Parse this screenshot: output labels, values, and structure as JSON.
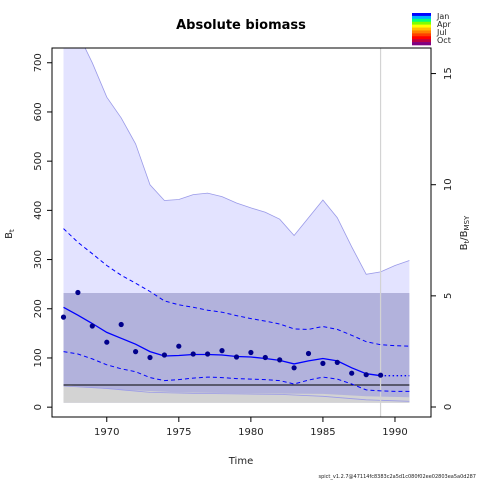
{
  "chart_data": {
    "type": "line",
    "title": "Absolute biomass",
    "xlabel": "Time",
    "ylabel_left": "B",
    "ylabel_left_sub": "t",
    "ylabel_right": "B",
    "ylabel_right_sub1": "t",
    "ylabel_right_mid": "/B",
    "ylabel_right_sub2": "MSY",
    "footer": "spict_v1.2.7@47114fc8383c2a5d1c080f02ee02803ea5a0d287",
    "xlim": [
      1966.2,
      1992.5
    ],
    "ylim": [
      -20,
      730
    ],
    "ylim_right": [
      -0.45,
      16.15
    ],
    "x_ticks": [
      1970,
      1975,
      1980,
      1985,
      1990
    ],
    "y_ticks": [
      0,
      100,
      200,
      300,
      400,
      500,
      600,
      700
    ],
    "y_ticks_right": [
      0,
      5,
      10,
      15
    ],
    "colors": {
      "ci_fill": "#e3e3ff",
      "ci_edge": "#9a9ae8",
      "band": "#8a8ac0",
      "line": "#0000ff",
      "points": "#00008b",
      "grey": "#d3d3d3",
      "vline": "#d3d3d3"
    },
    "legend": [
      "Jan",
      "Apr",
      "Jul",
      "Oct"
    ],
    "legend_colors": [
      "#0000ff",
      "#00b0ff",
      "#00ff7f",
      "#7fff00",
      "#ffff00",
      "#ffbf00",
      "#ff7f00",
      "#ff3f00",
      "#ff0000",
      "#bf0040",
      "#800080"
    ],
    "bmsy_band": [
      9,
      232
    ],
    "bmsy_line": 45,
    "grey_band_upper": {
      "x": [
        1967,
        1970,
        1975,
        1980,
        1985,
        1988,
        1991
      ],
      "y": [
        45,
        37,
        30,
        28,
        27,
        22,
        20
      ]
    },
    "vline_x": 1989,
    "observations": {
      "x": [
        1967,
        1968,
        1969,
        1970,
        1971,
        1972,
        1973,
        1974,
        1975,
        1976,
        1977,
        1978,
        1979,
        1980,
        1981,
        1982,
        1983,
        1984,
        1985,
        1986,
        1987,
        1988,
        1989
      ],
      "y": [
        183,
        233,
        165,
        132,
        168,
        113,
        101,
        106,
        124,
        108,
        108,
        115,
        102,
        111,
        101,
        96,
        80,
        109,
        89,
        91,
        69,
        66,
        65
      ]
    },
    "series": [
      {
        "name": "ci_upper",
        "x": [
          1967,
          1967.5,
          1968,
          1969,
          1970,
          1971,
          1972,
          1973,
          1974,
          1975,
          1976,
          1977,
          1978,
          1979,
          1980,
          1981,
          1982,
          1983,
          1984,
          1985,
          1986,
          1987,
          1988,
          1989,
          1990,
          1991
        ],
        "y": [
          730,
          770,
          760,
          700,
          630,
          588,
          535,
          452,
          420,
          422,
          432,
          435,
          428,
          415,
          405,
          396,
          382,
          349,
          385,
          421,
          385,
          326,
          270,
          275,
          288,
          298
        ]
      },
      {
        "name": "ci_lower",
        "x": [
          1967,
          1970,
          1973,
          1976,
          1979,
          1982,
          1985,
          1988,
          1991
        ],
        "y": [
          43,
          38,
          30,
          28,
          27,
          26,
          22,
          15,
          12
        ]
      },
      {
        "name": "upper_dashed",
        "x": [
          1967,
          1968,
          1969,
          1970,
          1971,
          1972,
          1973,
          1974,
          1975,
          1976,
          1977,
          1978,
          1979,
          1980,
          1981,
          1982,
          1983,
          1984,
          1985,
          1986,
          1987,
          1988,
          1989,
          1990,
          1991
        ],
        "y": [
          363,
          335,
          312,
          288,
          268,
          252,
          235,
          216,
          208,
          203,
          197,
          193,
          186,
          180,
          175,
          169,
          159,
          158,
          164,
          158,
          146,
          133,
          127,
          125,
          124
        ]
      },
      {
        "name": "estimate",
        "x": [
          1967,
          1968,
          1969,
          1970,
          1971,
          1972,
          1973,
          1974,
          1975,
          1976,
          1977,
          1978,
          1979,
          1980,
          1981,
          1982,
          1983,
          1984,
          1985,
          1986,
          1987,
          1988,
          1989
        ],
        "y": [
          203,
          187,
          170,
          152,
          140,
          128,
          113,
          104,
          105,
          107,
          107,
          106,
          103,
          102,
          99,
          95,
          88,
          94,
          99,
          94,
          80,
          68,
          64
        ]
      },
      {
        "name": "estimate_forecast",
        "x": [
          1989,
          1990,
          1991
        ],
        "y": [
          64,
          64,
          64
        ]
      },
      {
        "name": "lower_dashed",
        "x": [
          1967,
          1968,
          1969,
          1970,
          1971,
          1972,
          1973,
          1974,
          1975,
          1976,
          1977,
          1978,
          1979,
          1980,
          1981,
          1982,
          1983,
          1984,
          1985,
          1986,
          1987,
          1988,
          1989,
          1990,
          1991
        ],
        "y": [
          113,
          108,
          98,
          86,
          78,
          72,
          60,
          54,
          56,
          59,
          61,
          60,
          58,
          57,
          56,
          54,
          47,
          55,
          61,
          57,
          47,
          35,
          33,
          32,
          32
        ]
      }
    ]
  }
}
